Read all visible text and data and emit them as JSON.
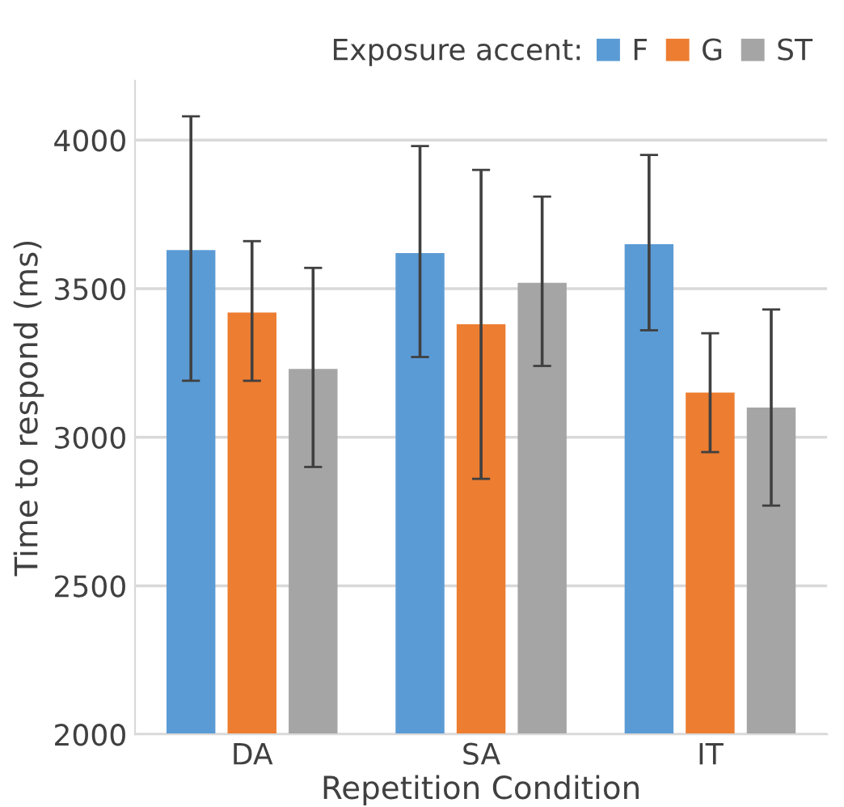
{
  "chart_data": {
    "type": "bar",
    "xlabel": "Repetition Condition",
    "ylabel": "Time to respond (ms)",
    "legend_title": "Exposure accent:",
    "categories": [
      "DA",
      "SA",
      "IT"
    ],
    "series": [
      {
        "name": "F",
        "color": "#5b9bd5",
        "values": [
          3630,
          3620,
          3650
        ],
        "errors": [
          [
            3190,
            4080
          ],
          [
            3270,
            3980
          ],
          [
            3360,
            3950
          ]
        ]
      },
      {
        "name": "G",
        "color": "#ed7d31",
        "values": [
          3420,
          3380,
          3150
        ],
        "errors": [
          [
            3190,
            3660
          ],
          [
            2860,
            3900
          ],
          [
            2950,
            3350
          ]
        ]
      },
      {
        "name": "ST",
        "color": "#a5a5a5",
        "values": [
          3230,
          3520,
          3100
        ],
        "errors": [
          [
            2900,
            3570
          ],
          [
            3240,
            3810
          ],
          [
            2770,
            3430
          ]
        ]
      }
    ],
    "ylim": [
      2000,
      4200
    ],
    "yticks": [
      2000,
      2500,
      3000,
      3500,
      4000
    ],
    "grid": "y",
    "legend": "top right"
  }
}
